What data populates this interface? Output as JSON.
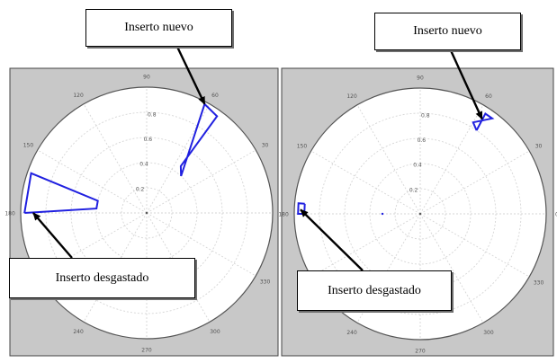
{
  "figure": {
    "colors": {
      "panel_bg": "#c8c8c8",
      "polar_bg": "#ffffff",
      "grid": "#d6d6d6",
      "axis_circle": "#555555",
      "tick_text": "#555555",
      "series": "#2020e0",
      "callout_border": "#000000"
    }
  },
  "chart_data": [
    {
      "type": "polar",
      "panel": "left",
      "r_ticks": [
        0.2,
        0.4,
        0.6,
        0.8
      ],
      "r_max": 1.0,
      "theta_tick_labels": [
        "0",
        "30",
        "60",
        "90",
        "120",
        "150",
        "180",
        "210",
        "240",
        "270",
        "300",
        "330"
      ],
      "series": [
        {
          "values": [
            {
              "theta_deg": 47,
              "r": 0.4
            },
            {
              "theta_deg": 54,
              "r": 0.46
            },
            {
              "theta_deg": 54,
              "r": 0.95
            },
            {
              "theta_deg": 62,
              "r": 0.98
            },
            {
              "theta_deg": 47,
              "r": 0.4
            }
          ]
        },
        {
          "values": [
            {
              "theta_deg": 180,
              "r": 0.97
            },
            {
              "theta_deg": 175,
              "r": 0.4
            },
            {
              "theta_deg": 166,
              "r": 0.4
            },
            {
              "theta_deg": 161,
              "r": 0.97
            },
            {
              "theta_deg": 180,
              "r": 0.97
            }
          ]
        }
      ],
      "annotations": [
        {
          "text": "Inserto nuevo",
          "points_to": {
            "theta_deg": 62,
            "r": 0.98
          }
        },
        {
          "text": "Inserto desgastado",
          "points_to": {
            "theta_deg": 180,
            "r": 0.9
          }
        }
      ]
    },
    {
      "type": "polar",
      "panel": "right",
      "r_ticks": [
        0.2,
        0.4,
        0.6,
        0.8
      ],
      "r_max": 1.0,
      "theta_tick_labels": [
        "0",
        "30",
        "60",
        "90",
        "120",
        "150",
        "180",
        "210",
        "240",
        "270",
        "300",
        "330"
      ],
      "series": [
        {
          "values": [
            {
              "theta_deg": 56,
              "r": 0.8
            },
            {
              "theta_deg": 60,
              "r": 0.84
            },
            {
              "theta_deg": 53,
              "r": 0.95
            },
            {
              "theta_deg": 57,
              "r": 0.95
            },
            {
              "theta_deg": 56,
              "r": 0.8
            }
          ]
        },
        {
          "values": [
            {
              "theta_deg": 175,
              "r": 0.92
            },
            {
              "theta_deg": 175,
              "r": 0.97
            },
            {
              "theta_deg": 180,
              "r": 0.97
            },
            {
              "theta_deg": 180,
              "r": 0.92
            },
            {
              "theta_deg": 175,
              "r": 0.92
            }
          ]
        },
        {
          "values": [
            {
              "theta_deg": 180,
              "r": 0.3
            }
          ]
        }
      ],
      "annotations": [
        {
          "text": "Inserto nuevo",
          "points_to": {
            "theta_deg": 57,
            "r": 0.9
          }
        },
        {
          "text": "Inserto desgastado",
          "points_to": {
            "theta_deg": 178,
            "r": 0.95
          }
        }
      ]
    }
  ]
}
